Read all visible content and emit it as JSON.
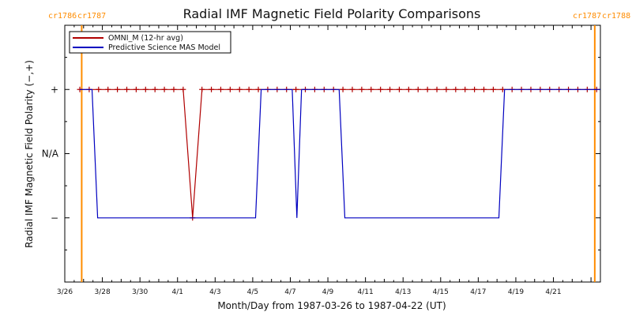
{
  "chart_data": {
    "type": "line",
    "title": "Radial IMF Magnetic Field Polarity Comparisons",
    "xlabel": "Month/Day from 1987-03-26 to 1987-04-22 (UT)",
    "ylabel": "Radial IMF Magnetic Field Polarity (−,+)",
    "x_start": "1987-03-26",
    "x_end": "1987-04-22",
    "x_range_days": [
      0,
      28.5
    ],
    "y_range": [
      -2,
      2
    ],
    "xtick_labels": [
      "3/26",
      "3/28",
      "3/30",
      "4/1",
      "4/3",
      "4/5",
      "4/7",
      "4/9",
      "4/11",
      "4/13",
      "4/15",
      "4/17",
      "4/19",
      "4/21"
    ],
    "xtick_days": [
      0,
      2,
      4,
      6,
      8,
      10,
      12,
      14,
      16,
      18,
      20,
      22,
      24,
      26
    ],
    "ytick_labels": [
      "+",
      "N/A",
      "−"
    ],
    "ytick_values": [
      1,
      0,
      -1
    ],
    "legend": {
      "position": "top-left",
      "entries": [
        "OMNI_M (12-hr avg)",
        "Predictive Science MAS Model"
      ]
    },
    "carrington_markers": [
      {
        "label_left": "cr1786",
        "label_right": "cr1787",
        "day": 0.9
      },
      {
        "label_left": "cr1787",
        "label_right": "cr1788",
        "day": 28.2
      }
    ],
    "colors": {
      "omni": "#b00000",
      "mas": "#0000c0",
      "carrington": "#ff8c00",
      "axes": "#000000"
    },
    "series": [
      {
        "name": "OMNI_M (12-hr avg)",
        "marker": "plus",
        "points": [
          [
            0.8,
            1
          ],
          [
            1.3,
            1
          ],
          [
            1.8,
            1
          ],
          [
            2.3,
            1
          ],
          [
            2.8,
            1
          ],
          [
            3.3,
            1
          ],
          [
            3.8,
            1
          ],
          [
            4.3,
            1
          ],
          [
            4.8,
            1
          ],
          [
            5.3,
            1
          ],
          [
            5.8,
            1
          ],
          [
            6.3,
            1
          ],
          [
            6.8,
            -1
          ],
          [
            7.3,
            1
          ],
          [
            7.8,
            1
          ],
          [
            8.3,
            1
          ],
          [
            8.8,
            1
          ],
          [
            9.3,
            1
          ],
          [
            9.8,
            1
          ],
          [
            10.3,
            1
          ],
          [
            10.8,
            1
          ],
          [
            11.3,
            1
          ],
          [
            11.8,
            1
          ],
          [
            12.3,
            1
          ],
          [
            12.8,
            1
          ],
          [
            13.3,
            1
          ],
          [
            13.8,
            1
          ],
          [
            14.3,
            1
          ],
          [
            14.8,
            1
          ],
          [
            15.3,
            1
          ],
          [
            15.8,
            1
          ],
          [
            16.3,
            1
          ],
          [
            16.8,
            1
          ],
          [
            17.3,
            1
          ],
          [
            17.8,
            1
          ],
          [
            18.3,
            1
          ],
          [
            18.8,
            1
          ],
          [
            19.3,
            1
          ],
          [
            19.8,
            1
          ],
          [
            20.3,
            1
          ],
          [
            20.8,
            1
          ],
          [
            21.3,
            1
          ],
          [
            21.8,
            1
          ],
          [
            22.3,
            1
          ],
          [
            22.8,
            1
          ],
          [
            23.3,
            1
          ],
          [
            23.8,
            1
          ],
          [
            24.3,
            1
          ],
          [
            24.8,
            1
          ],
          [
            25.3,
            1
          ],
          [
            25.8,
            1
          ],
          [
            26.3,
            1
          ],
          [
            26.8,
            1
          ],
          [
            27.3,
            1
          ],
          [
            27.8,
            1
          ],
          [
            28.3,
            1
          ]
        ]
      },
      {
        "name": "Predictive Science MAS Model",
        "marker": "none",
        "points": [
          [
            0.8,
            1
          ],
          [
            1.45,
            1
          ],
          [
            1.75,
            -1
          ],
          [
            10.15,
            -1
          ],
          [
            10.45,
            1
          ],
          [
            12.1,
            1
          ],
          [
            12.35,
            -1
          ],
          [
            12.6,
            1
          ],
          [
            14.6,
            1
          ],
          [
            14.9,
            -1
          ],
          [
            23.1,
            -1
          ],
          [
            23.4,
            1
          ],
          [
            28.5,
            1
          ]
        ]
      }
    ]
  }
}
